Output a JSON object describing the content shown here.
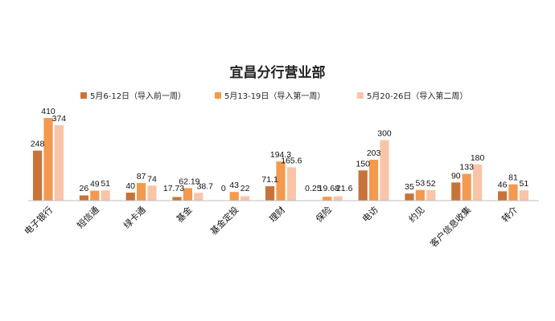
{
  "chart_data": {
    "type": "bar",
    "title": "宜昌分行营业部",
    "categories": [
      "电子银行",
      "短信通",
      "绿卡通",
      "基金",
      "基金定投",
      "理财",
      "保险",
      "电访",
      "约见",
      "客户信息收集",
      "转介"
    ],
    "series": [
      {
        "name": "5月6-12日（导入前一周）",
        "color": "#C8733A",
        "values": [
          248,
          26,
          40,
          17.73,
          0,
          71.1,
          0.25,
          150,
          35,
          90,
          46
        ],
        "labels": [
          "248",
          "26",
          "40",
          "17.73",
          "0",
          "71.1",
          "0.25",
          "150",
          "35",
          "90",
          "46"
        ]
      },
      {
        "name": "5月13-19日（导入第一周）",
        "color": "#F39A4E",
        "values": [
          410,
          49,
          87,
          62.19,
          43,
          194.3,
          19.68,
          203,
          53,
          133,
          81
        ],
        "labels": [
          "410",
          "49",
          "87",
          "62.19",
          "43",
          "194.3",
          "19.68",
          "203",
          "53",
          "133",
          "81"
        ]
      },
      {
        "name": "5月20-26日（导入第二周）",
        "color": "#F9C4A8",
        "values": [
          374,
          51,
          74,
          38.7,
          22,
          165.6,
          21.6,
          300,
          52,
          180,
          51
        ],
        "labels": [
          "374",
          "51",
          "74",
          "38.7",
          "22",
          "165.6",
          "21.6",
          "300",
          "52",
          "180",
          "51"
        ]
      }
    ],
    "xlabel": "",
    "ylabel": "",
    "ylim": [
      0,
      410
    ],
    "legend": "top",
    "grid": false
  }
}
